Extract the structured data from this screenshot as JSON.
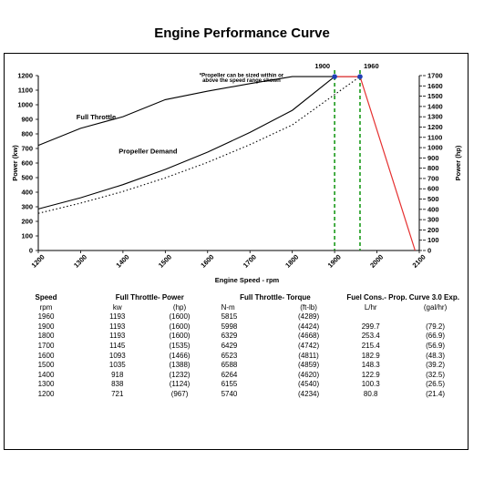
{
  "page_title": "Engine Performance Curve",
  "chart_data": {
    "type": "line",
    "xlabel": "Engine Speed - rpm",
    "ylabel_left": "Power (kw)",
    "ylabel_right": "Power (hp)",
    "xlim": [
      1200,
      2100
    ],
    "ylim_left": [
      0,
      1200
    ],
    "ylim_right": [
      0,
      1700
    ],
    "x_ticks": [
      "1200",
      "1300",
      "1400",
      "1500",
      "1600",
      "1700",
      "1800",
      "1900",
      "2000",
      "2100"
    ],
    "y_left_ticks": [
      "0",
      "100",
      "200",
      "300",
      "400",
      "500",
      "600",
      "700",
      "800",
      "900",
      "1000",
      "1100",
      "1200"
    ],
    "y_right_ticks": [
      "0",
      "100",
      "200",
      "300",
      "400",
      "500",
      "600",
      "700",
      "800",
      "900",
      "1000",
      "1100",
      "1200",
      "1300",
      "1400",
      "1500",
      "1600",
      "1700"
    ],
    "series": [
      {
        "name": "Full Throttle",
        "style": "solid",
        "color": "#000000",
        "x": [
          1200,
          1300,
          1400,
          1500,
          1600,
          1700,
          1800,
          1900,
          1960
        ],
        "y": [
          721,
          838,
          918,
          1035,
          1093,
          1145,
          1193,
          1193,
          1193
        ]
      },
      {
        "name": "Propeller Demand",
        "style": "solid",
        "color": "#000000",
        "x": [
          1200,
          1300,
          1400,
          1500,
          1600,
          1700,
          1800,
          1900
        ],
        "y": [
          285,
          362,
          452,
          556,
          675,
          810,
          962,
          1193
        ]
      },
      {
        "name": "",
        "style": "dotted",
        "color": "#000000",
        "x": [
          1200,
          1300,
          1400,
          1500,
          1600,
          1700,
          1800,
          1900,
          1960
        ],
        "y": [
          255,
          325,
          405,
          498,
          605,
          726,
          862,
          1070,
          1193
        ]
      },
      {
        "name": "",
        "style": "solid",
        "color": "#e53030",
        "x": [
          1900,
          1960,
          2090
        ],
        "y": [
          1193,
          1193,
          0
        ]
      }
    ],
    "vlines": [
      {
        "x": 1900,
        "label": "1900",
        "color": "#1a9a1a",
        "style": "dashed"
      },
      {
        "x": 1960,
        "label": "1960",
        "color": "#1a9a1a",
        "style": "dashed"
      }
    ],
    "markers": [
      {
        "x": 1900,
        "y": 1193,
        "color": "#1f3fb5"
      },
      {
        "x": 1960,
        "y": 1193,
        "color": "#1f3fb5"
      }
    ],
    "annotations": [
      {
        "text": "Full Throttle",
        "x": 1290,
        "y": 900
      },
      {
        "text": "Propeller Demand",
        "x": 1390,
        "y": 665
      },
      {
        "text": "*Propeller can be sized within or",
        "x": 1680,
        "y": 1190
      },
      {
        "text": "above the speed range shown",
        "x": 1680,
        "y": 1155
      }
    ],
    "grid": false
  },
  "table": {
    "group_headers": [
      "Speed",
      "Full Throttle- Power",
      "Full Throttle- Torque",
      "Fuel Cons.- Prop. Curve 3.0 Exp."
    ],
    "units": [
      "rpm",
      "kw",
      "(hp)",
      "N-m",
      "(ft-lb)",
      "L/hr",
      "(gal/hr)"
    ],
    "rows": [
      [
        "1960",
        "1193",
        "(1600)",
        "5815",
        "(4289)",
        "",
        ""
      ],
      [
        "1900",
        "1193",
        "(1600)",
        "5998",
        "(4424)",
        "299.7",
        "(79.2)"
      ],
      [
        "1800",
        "1193",
        "(1600)",
        "6329",
        "(4668)",
        "253.4",
        "(66.9)"
      ],
      [
        "1700",
        "1145",
        "(1535)",
        "6429",
        "(4742)",
        "215.4",
        "(56.9)"
      ],
      [
        "1600",
        "1093",
        "(1466)",
        "6523",
        "(4811)",
        "182.9",
        "(48.3)"
      ],
      [
        "1500",
        "1035",
        "(1388)",
        "6588",
        "(4859)",
        "148.3",
        "(39.2)"
      ],
      [
        "1400",
        "918",
        "(1232)",
        "6264",
        "(4620)",
        "122.9",
        "(32.5)"
      ],
      [
        "1300",
        "838",
        "(1124)",
        "6155",
        "(4540)",
        "100.3",
        "(26.5)"
      ],
      [
        "1200",
        "721",
        "(967)",
        "5740",
        "(4234)",
        "80.8",
        "(21.4)"
      ]
    ]
  }
}
